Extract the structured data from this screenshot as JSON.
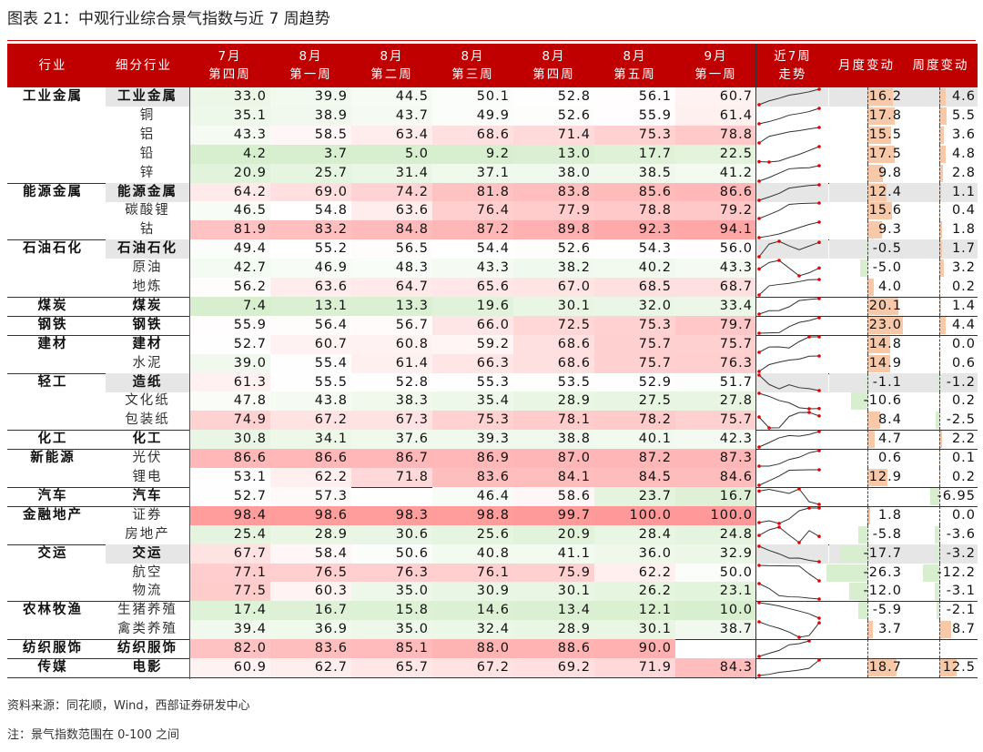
{
  "title": "图表 21：中观行业综合景气指数与近 7 周趋势",
  "headers": {
    "industry": "行业",
    "sub": "细分行业",
    "weeks": [
      [
        "7月",
        "第四周"
      ],
      [
        "8月",
        "第一周"
      ],
      [
        "8月",
        "第二周"
      ],
      [
        "8月",
        "第三周"
      ],
      [
        "8月",
        "第四周"
      ],
      [
        "8月",
        "第五周"
      ],
      [
        "9月",
        "第一周"
      ]
    ],
    "trend": [
      "近7周",
      "走势"
    ],
    "month": "月度变动",
    "week": "周度变动"
  },
  "colors": {
    "header": "#c00000",
    "high": "#ff9999",
    "low": "#d8efcf",
    "mid": "#ffffff",
    "pos_bar": "#f8c9a8",
    "neg_bar": "#d8efcf",
    "spark": "#333333",
    "marker": "#e00000"
  },
  "chart_data": {
    "type": "table",
    "title": "中观行业综合景气指数与近 7 周趋势",
    "value_range": [
      0,
      100
    ],
    "groups": [
      {
        "industry": "工业金属",
        "rows": [
          {
            "sub": "工业金属",
            "hl": true,
            "values": [
              33.0,
              39.9,
              44.5,
              50.1,
              52.8,
              56.1,
              60.7
            ],
            "month": "16.2",
            "week": "4.6"
          },
          {
            "sub": "铜",
            "values": [
              35.1,
              38.9,
              43.7,
              49.9,
              52.6,
              55.9,
              61.4
            ],
            "month": "17.8",
            "week": "5.5"
          },
          {
            "sub": "铝",
            "values": [
              43.3,
              58.5,
              63.4,
              68.6,
              71.4,
              75.3,
              78.8
            ],
            "month": "15.5",
            "week": "3.6"
          },
          {
            "sub": "铅",
            "values": [
              4.2,
              3.7,
              5.0,
              9.2,
              13.0,
              17.7,
              22.5
            ],
            "month": "17.5",
            "week": "4.8"
          },
          {
            "sub": "锌",
            "values": [
              20.9,
              25.7,
              31.4,
              37.1,
              38.0,
              38.5,
              41.2
            ],
            "month": "9.8",
            "week": "2.8"
          }
        ]
      },
      {
        "industry": "能源金属",
        "rows": [
          {
            "sub": "能源金属",
            "hl": true,
            "values": [
              64.2,
              69.0,
              74.2,
              81.8,
              83.8,
              85.6,
              86.6
            ],
            "month": "12.4",
            "week": "1.1"
          },
          {
            "sub": "碳酸锂",
            "values": [
              46.5,
              54.8,
              63.6,
              76.4,
              77.9,
              78.8,
              79.2
            ],
            "month": "15.6",
            "week": "0.4"
          },
          {
            "sub": "钴",
            "values": [
              81.9,
              83.2,
              84.8,
              87.2,
              89.8,
              92.3,
              94.1
            ],
            "month": "9.3",
            "week": "1.8"
          }
        ]
      },
      {
        "industry": "石油石化",
        "rows": [
          {
            "sub": "石油石化",
            "hl": true,
            "values": [
              49.4,
              55.2,
              56.5,
              54.4,
              52.6,
              54.3,
              56.0
            ],
            "month": "-0.5",
            "week": "1.7"
          },
          {
            "sub": "原油",
            "values": [
              42.7,
              46.9,
              48.3,
              43.3,
              38.2,
              40.2,
              43.3
            ],
            "month": "-5.0",
            "week": "3.2"
          },
          {
            "sub": "地炼",
            "values": [
              56.2,
              63.6,
              64.7,
              65.6,
              67.0,
              68.5,
              68.7
            ],
            "month": "4.0",
            "week": "0.2"
          }
        ]
      },
      {
        "industry": "煤炭",
        "rows": [
          {
            "sub": "煤炭",
            "bold": true,
            "values": [
              7.4,
              13.1,
              13.3,
              19.6,
              30.1,
              32.0,
              33.4
            ],
            "month": "20.1",
            "week": "1.4"
          }
        ]
      },
      {
        "industry": "钢铁",
        "rows": [
          {
            "sub": "钢铁",
            "bold": true,
            "values": [
              55.9,
              56.4,
              56.7,
              66.0,
              72.5,
              75.3,
              79.7
            ],
            "month": "23.0",
            "week": "4.4"
          }
        ]
      },
      {
        "industry": "建材",
        "rows": [
          {
            "sub": "建材",
            "bold": true,
            "values": [
              52.7,
              60.7,
              60.8,
              59.2,
              68.6,
              75.7,
              75.7
            ],
            "month": "14.8",
            "week": "0.0"
          },
          {
            "sub": "水泥",
            "values": [
              39.0,
              55.4,
              61.4,
              66.3,
              68.6,
              75.7,
              76.3
            ],
            "month": "14.9",
            "week": "0.6"
          }
        ]
      },
      {
        "industry": "轻工",
        "rows": [
          {
            "sub": "造纸",
            "hl": true,
            "values": [
              61.3,
              55.5,
              52.8,
              55.3,
              53.5,
              52.9,
              51.7
            ],
            "month": "-1.1",
            "week": "-1.2"
          },
          {
            "sub": "文化纸",
            "values": [
              47.8,
              43.8,
              38.3,
              35.4,
              28.9,
              27.5,
              27.8
            ],
            "month": "-10.6",
            "week": "0.2"
          },
          {
            "sub": "包装纸",
            "values": [
              74.9,
              67.2,
              67.3,
              75.3,
              78.1,
              78.2,
              75.7
            ],
            "month": "8.4",
            "week": "-2.5"
          }
        ]
      },
      {
        "industry": "化工",
        "rows": [
          {
            "sub": "化工",
            "bold": true,
            "values": [
              30.8,
              34.1,
              37.6,
              39.3,
              38.8,
              40.1,
              42.3
            ],
            "month": "4.7",
            "week": "2.2"
          }
        ]
      },
      {
        "industry": "新能源",
        "rows": [
          {
            "sub": "光伏",
            "values": [
              86.6,
              86.6,
              86.7,
              86.9,
              87.0,
              87.2,
              87.3
            ],
            "month": "0.6",
            "week": "0.1"
          },
          {
            "sub": "锂电",
            "values": [
              53.1,
              62.2,
              71.8,
              83.6,
              84.1,
              84.5,
              84.6
            ],
            "month": "12.9",
            "week": "0.2"
          }
        ]
      },
      {
        "industry": "汽车",
        "rows": [
          {
            "sub": "汽车",
            "bold": true,
            "values": [
              52.7,
              57.3,
              null,
              46.4,
              58.6,
              23.7,
              16.7
            ],
            "month": null,
            "week": "-6.95"
          }
        ]
      },
      {
        "industry": "金融地产",
        "rows": [
          {
            "sub": "证券",
            "values": [
              98.4,
              98.6,
              98.3,
              98.8,
              99.7,
              100.0,
              100.0
            ],
            "month": "1.8",
            "week": "0.0"
          },
          {
            "sub": "房地产",
            "values": [
              25.4,
              28.9,
              30.6,
              25.6,
              20.9,
              28.4,
              24.8
            ],
            "month": "-5.8",
            "week": "-3.6"
          }
        ]
      },
      {
        "industry": "交运",
        "rows": [
          {
            "sub": "交运",
            "hl": true,
            "values": [
              67.7,
              58.4,
              50.6,
              40.8,
              41.1,
              36.0,
              32.9
            ],
            "month": "-17.7",
            "week": "-3.2"
          },
          {
            "sub": "航空",
            "values": [
              77.1,
              76.5,
              76.3,
              76.1,
              75.9,
              62.2,
              50.0
            ],
            "month": "-26.3",
            "week": "-12.2"
          },
          {
            "sub": "物流",
            "values": [
              77.5,
              60.3,
              35.0,
              30.9,
              30.1,
              26.2,
              23.1
            ],
            "month": "-12.0",
            "week": "-3.1"
          }
        ]
      },
      {
        "industry": "农林牧渔",
        "rows": [
          {
            "sub": "生猪养殖",
            "values": [
              17.4,
              16.7,
              15.8,
              14.6,
              13.4,
              12.1,
              10.0
            ],
            "month": "-5.9",
            "week": "-2.1"
          },
          {
            "sub": "禽类养殖",
            "values": [
              39.4,
              36.9,
              35.0,
              32.4,
              28.9,
              30.1,
              38.7
            ],
            "month": "3.7",
            "week": "8.7"
          }
        ]
      },
      {
        "industry": "纺织服饰",
        "rows": [
          {
            "sub": "纺织服饰",
            "bold": true,
            "values": [
              82.0,
              83.6,
              85.1,
              88.0,
              88.6,
              90.0,
              null
            ],
            "month": null,
            "week": null
          }
        ]
      },
      {
        "industry": "传媒",
        "rows": [
          {
            "sub": "电影",
            "bold": true,
            "values": [
              60.9,
              62.7,
              65.7,
              67.2,
              69.2,
              71.9,
              84.3
            ],
            "month": "18.7",
            "week": "12.5"
          }
        ]
      }
    ]
  },
  "footer": {
    "source": "资料来源：同花顺，Wind，西部证券研发中心",
    "note": "注：景气指数范围在 0-100 之间"
  }
}
